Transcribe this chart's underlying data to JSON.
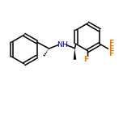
{
  "bg_color": "#ffffff",
  "bond_color": "#000000",
  "N_color": "#0000cd",
  "F_color": "#e87800",
  "lw": 1.1,
  "font_size": 6.8,
  "NH_label": "NH",
  "F_label": "F"
}
